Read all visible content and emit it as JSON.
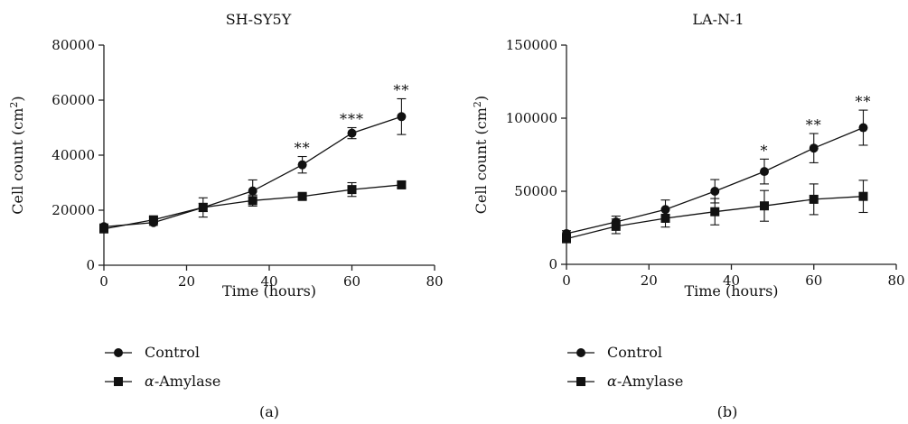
{
  "chart_data": [
    {
      "type": "line",
      "title": "SH-SY5Y",
      "xlabel": "Time (hours)",
      "ylabel_main": "Cell count (cm",
      "ylabel_sup": "2",
      "ylabel_close": ")",
      "xlim": [
        0,
        80
      ],
      "ylim": [
        0,
        80000
      ],
      "xticks": [
        "0",
        "20",
        "40",
        "60",
        "80"
      ],
      "xtick_values": [
        0,
        20,
        40,
        60,
        80
      ],
      "yticks": [
        "0",
        "20000",
        "40000",
        "60000",
        "80000"
      ],
      "ytick_values": [
        0,
        20000,
        40000,
        60000,
        80000
      ],
      "x": [
        0,
        12,
        24,
        36,
        48,
        60,
        72
      ],
      "series": [
        {
          "name": "Control",
          "marker": "circle",
          "values": [
            14000,
            15500,
            21000,
            27000,
            36500,
            48000,
            54000
          ],
          "errors": [
            1000,
            1000,
            1500,
            4000,
            3000,
            2000,
            6500
          ]
        },
        {
          "name": "α-Amylase",
          "marker": "square",
          "values": [
            13200,
            16500,
            21000,
            23500,
            25000,
            27500,
            29200
          ],
          "errors": [
            1000,
            1000,
            3500,
            2000,
            1000,
            2500,
            1000
          ]
        }
      ],
      "significance": [
        {
          "x": 48,
          "label": "**"
        },
        {
          "x": 60,
          "label": "***"
        },
        {
          "x": 72,
          "label": "**"
        }
      ],
      "legend": {
        "greek": "α",
        "suffix": "-Amylase",
        "control": "Control",
        "position": "bottom-left"
      },
      "panel_label": "(a)",
      "grid": false
    },
    {
      "type": "line",
      "title": "LA-N-1",
      "xlabel": "Time (hours)",
      "ylabel_main": "Cell count (cm",
      "ylabel_sup": "2",
      "ylabel_close": ")",
      "xlim": [
        0,
        80
      ],
      "ylim": [
        0,
        150000
      ],
      "xticks": [
        "0",
        "20",
        "40",
        "60",
        "80"
      ],
      "xtick_values": [
        0,
        20,
        40,
        60,
        80
      ],
      "yticks": [
        "0",
        "50000",
        "100000",
        "150000"
      ],
      "ytick_values": [
        0,
        50000,
        100000,
        150000
      ],
      "x": [
        0,
        12,
        24,
        36,
        48,
        60,
        72
      ],
      "series": [
        {
          "name": "Control",
          "marker": "circle",
          "values": [
            21000,
            29000,
            37500,
            50000,
            63500,
            79500,
            93500
          ],
          "errors": [
            2000,
            4000,
            6500,
            8000,
            8500,
            10000,
            12000
          ]
        },
        {
          "name": "α-Amylase",
          "marker": "square",
          "values": [
            17500,
            26000,
            31500,
            36000,
            40000,
            44500,
            46500
          ],
          "errors": [
            2000,
            5000,
            6000,
            9000,
            10500,
            10500,
            11000
          ]
        }
      ],
      "significance": [
        {
          "x": 48,
          "label": "*"
        },
        {
          "x": 60,
          "label": "**"
        },
        {
          "x": 72,
          "label": "**"
        }
      ],
      "legend": {
        "greek": "α",
        "suffix": "-Amylase",
        "control": "Control",
        "position": "bottom-left"
      },
      "panel_label": "(b)",
      "grid": false
    }
  ]
}
